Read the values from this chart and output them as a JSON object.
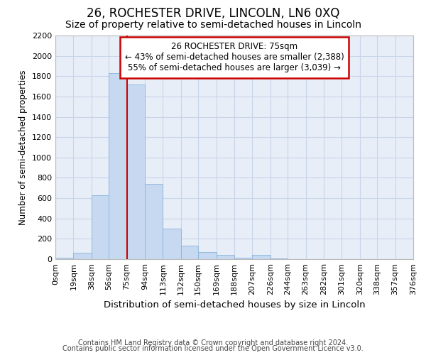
{
  "title": "26, ROCHESTER DRIVE, LINCOLN, LN6 0XQ",
  "subtitle": "Size of property relative to semi-detached houses in Lincoln",
  "xlabel": "Distribution of semi-detached houses by size in Lincoln",
  "ylabel": "Number of semi-detached properties",
  "footnote1": "Contains HM Land Registry data © Crown copyright and database right 2024.",
  "footnote2": "Contains public sector information licensed under the Open Government Licence v3.0.",
  "annotation_title": "26 ROCHESTER DRIVE: 75sqm",
  "annotation_line1": "← 43% of semi-detached houses are smaller (2,388)",
  "annotation_line2": "55% of semi-detached houses are larger (3,039) →",
  "property_size": 75,
  "bar_edges": [
    0,
    19,
    38,
    56,
    75,
    94,
    113,
    132,
    150,
    169,
    188,
    207,
    226,
    244,
    263,
    282,
    301,
    320,
    338,
    357,
    376
  ],
  "bar_values": [
    15,
    60,
    630,
    1830,
    1720,
    740,
    300,
    130,
    70,
    45,
    15,
    40,
    10,
    3,
    2,
    1,
    0,
    0,
    0,
    0
  ],
  "bar_color": "#c6d9f0",
  "bar_edge_color": "#8ab4d8",
  "red_line_color": "#cc0000",
  "annotation_box_color": "#cc0000",
  "grid_color": "#c8d4e8",
  "background_color": "#e8eef8",
  "ylim": [
    0,
    2200
  ],
  "yticks": [
    0,
    200,
    400,
    600,
    800,
    1000,
    1200,
    1400,
    1600,
    1800,
    2000,
    2200
  ],
  "title_fontsize": 12,
  "subtitle_fontsize": 10,
  "tick_fontsize": 8,
  "ylabel_fontsize": 8.5,
  "xlabel_fontsize": 9.5,
  "annotation_fontsize": 8.5,
  "footnote_fontsize": 7
}
